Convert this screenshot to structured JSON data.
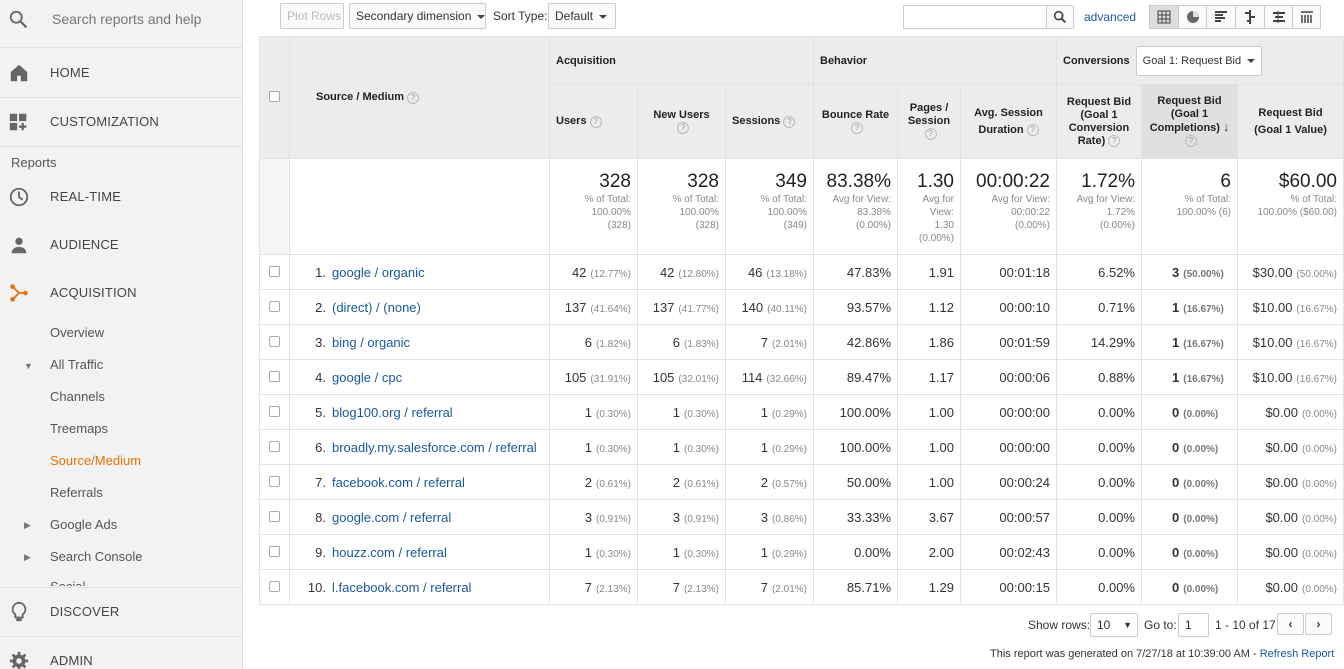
{
  "sidebar": {
    "search_placeholder": "Search reports and help",
    "home": "HOME",
    "customization": "CUSTOMIZATION",
    "reports_label": "Reports",
    "realtime": "REAL-TIME",
    "audience": "AUDIENCE",
    "acquisition": "ACQUISITION",
    "overview": "Overview",
    "all_traffic": "All Traffic",
    "channels": "Channels",
    "treemaps": "Treemaps",
    "source_medium": "Source/Medium",
    "referrals": "Referrals",
    "google_ads": "Google Ads",
    "search_console": "Search Console",
    "social": "Social",
    "discover": "DISCOVER",
    "admin": "ADMIN",
    "active_color": "#e8710a"
  },
  "toolbar": {
    "plot_rows": "Plot Rows",
    "secondary_dimension": "Secondary dimension",
    "sort_type_label": "Sort Type:",
    "sort_type_value": "Default",
    "advanced": "advanced"
  },
  "table": {
    "dimension_header": "Source / Medium",
    "groups": {
      "acquisition": "Acquisition",
      "behavior": "Behavior",
      "conversions": "Conversions",
      "goal_select": "Goal 1: Request Bid"
    },
    "columns": [
      "Users",
      "New Users",
      "Sessions",
      "Bounce Rate",
      "Pages / Session",
      "Avg. Session Duration",
      "Request Bid (Goal 1 Conversion Rate)",
      "Request Bid (Goal 1 Completions)",
      "Request Bid (Goal 1 Value)"
    ],
    "totals": [
      {
        "big": "328",
        "l1": "% of Total:",
        "l2": "100.00%",
        "l3": "(328)"
      },
      {
        "big": "328",
        "l1": "% of Total:",
        "l2": "100.00%",
        "l3": "(328)"
      },
      {
        "big": "349",
        "l1": "% of Total:",
        "l2": "100.00%",
        "l3": "(349)"
      },
      {
        "big": "83.38%",
        "l1": "Avg for View:",
        "l2": "83.38%",
        "l3": "(0.00%)"
      },
      {
        "big": "1.30",
        "l1": "Avg for",
        "l2": "View:",
        "l3": "1.30",
        "l4": "(0.00%)"
      },
      {
        "big": "00:00:22",
        "l1": "Avg for View:",
        "l2": "00:00:22",
        "l3": "(0.00%)"
      },
      {
        "big": "1.72%",
        "l1": "Avg for View:",
        "l2": "1.72%",
        "l3": "(0.00%)"
      },
      {
        "big": "6",
        "l1": "% of Total:",
        "l2": "100.00% (6)",
        "l3": ""
      },
      {
        "big": "$60.00",
        "l1": "% of Total:",
        "l2": "100.00% ($60.00)",
        "l3": ""
      }
    ],
    "rows": [
      {
        "i": "1.",
        "src": "google / organic",
        "u": "42",
        "up": "(12.77%)",
        "nu": "42",
        "nup": "(12.80%)",
        "s": "46",
        "sp": "(13.18%)",
        "br": "47.83%",
        "pps": "1.91",
        "dur": "00:01:18",
        "cr": "6.52%",
        "comp": "3",
        "compp": "(50.00%)",
        "val": "$30.00",
        "valp": "(50.00%)"
      },
      {
        "i": "2.",
        "src": "(direct) / (none)",
        "u": "137",
        "up": "(41.64%)",
        "nu": "137",
        "nup": "(41.77%)",
        "s": "140",
        "sp": "(40.11%)",
        "br": "93.57%",
        "pps": "1.12",
        "dur": "00:00:10",
        "cr": "0.71%",
        "comp": "1",
        "compp": "(16.67%)",
        "val": "$10.00",
        "valp": "(16.67%)"
      },
      {
        "i": "3.",
        "src": "bing / organic",
        "u": "6",
        "up": "(1.82%)",
        "nu": "6",
        "nup": "(1.83%)",
        "s": "7",
        "sp": "(2.01%)",
        "br": "42.86%",
        "pps": "1.86",
        "dur": "00:01:59",
        "cr": "14.29%",
        "comp": "1",
        "compp": "(16.67%)",
        "val": "$10.00",
        "valp": "(16.67%)"
      },
      {
        "i": "4.",
        "src": "google / cpc",
        "u": "105",
        "up": "(31.91%)",
        "nu": "105",
        "nup": "(32.01%)",
        "s": "114",
        "sp": "(32.66%)",
        "br": "89.47%",
        "pps": "1.17",
        "dur": "00:00:06",
        "cr": "0.88%",
        "comp": "1",
        "compp": "(16.67%)",
        "val": "$10.00",
        "valp": "(16.67%)"
      },
      {
        "i": "5.",
        "src": "blog100.org / referral",
        "u": "1",
        "up": "(0.30%)",
        "nu": "1",
        "nup": "(0.30%)",
        "s": "1",
        "sp": "(0.29%)",
        "br": "100.00%",
        "pps": "1.00",
        "dur": "00:00:00",
        "cr": "0.00%",
        "comp": "0",
        "compp": "(0.00%)",
        "val": "$0.00",
        "valp": "(0.00%)"
      },
      {
        "i": "6.",
        "src": "broadly.my.salesforce.com / referral",
        "u": "1",
        "up": "(0.30%)",
        "nu": "1",
        "nup": "(0.30%)",
        "s": "1",
        "sp": "(0.29%)",
        "br": "100.00%",
        "pps": "1.00",
        "dur": "00:00:00",
        "cr": "0.00%",
        "comp": "0",
        "compp": "(0.00%)",
        "val": "$0.00",
        "valp": "(0.00%)"
      },
      {
        "i": "7.",
        "src": "facebook.com / referral",
        "u": "2",
        "up": "(0.61%)",
        "nu": "2",
        "nup": "(0.61%)",
        "s": "2",
        "sp": "(0.57%)",
        "br": "50.00%",
        "pps": "1.00",
        "dur": "00:00:24",
        "cr": "0.00%",
        "comp": "0",
        "compp": "(0.00%)",
        "val": "$0.00",
        "valp": "(0.00%)"
      },
      {
        "i": "8.",
        "src": "google.com / referral",
        "u": "3",
        "up": "(0.91%)",
        "nu": "3",
        "nup": "(0.91%)",
        "s": "3",
        "sp": "(0.86%)",
        "br": "33.33%",
        "pps": "3.67",
        "dur": "00:00:57",
        "cr": "0.00%",
        "comp": "0",
        "compp": "(0.00%)",
        "val": "$0.00",
        "valp": "(0.00%)"
      },
      {
        "i": "9.",
        "src": "houzz.com / referral",
        "u": "1",
        "up": "(0.30%)",
        "nu": "1",
        "nup": "(0.30%)",
        "s": "1",
        "sp": "(0.29%)",
        "br": "0.00%",
        "pps": "2.00",
        "dur": "00:02:43",
        "cr": "0.00%",
        "comp": "0",
        "compp": "(0.00%)",
        "val": "$0.00",
        "valp": "(0.00%)"
      },
      {
        "i": "10.",
        "src": "l.facebook.com / referral",
        "u": "7",
        "up": "(2.13%)",
        "nu": "7",
        "nup": "(2.13%)",
        "s": "7",
        "sp": "(2.01%)",
        "br": "85.71%",
        "pps": "1.29",
        "dur": "00:00:15",
        "cr": "0.00%",
        "comp": "0",
        "compp": "(0.00%)",
        "val": "$0.00",
        "valp": "(0.00%)"
      }
    ]
  },
  "pagination": {
    "show_rows_label": "Show rows:",
    "show_rows_value": "10",
    "goto_label": "Go to:",
    "goto_value": "1",
    "range": "1 - 10 of 17"
  },
  "footer": {
    "generated": "This report was generated on 7/27/18 at 10:39:00 AM -",
    "refresh": "Refresh Report"
  }
}
